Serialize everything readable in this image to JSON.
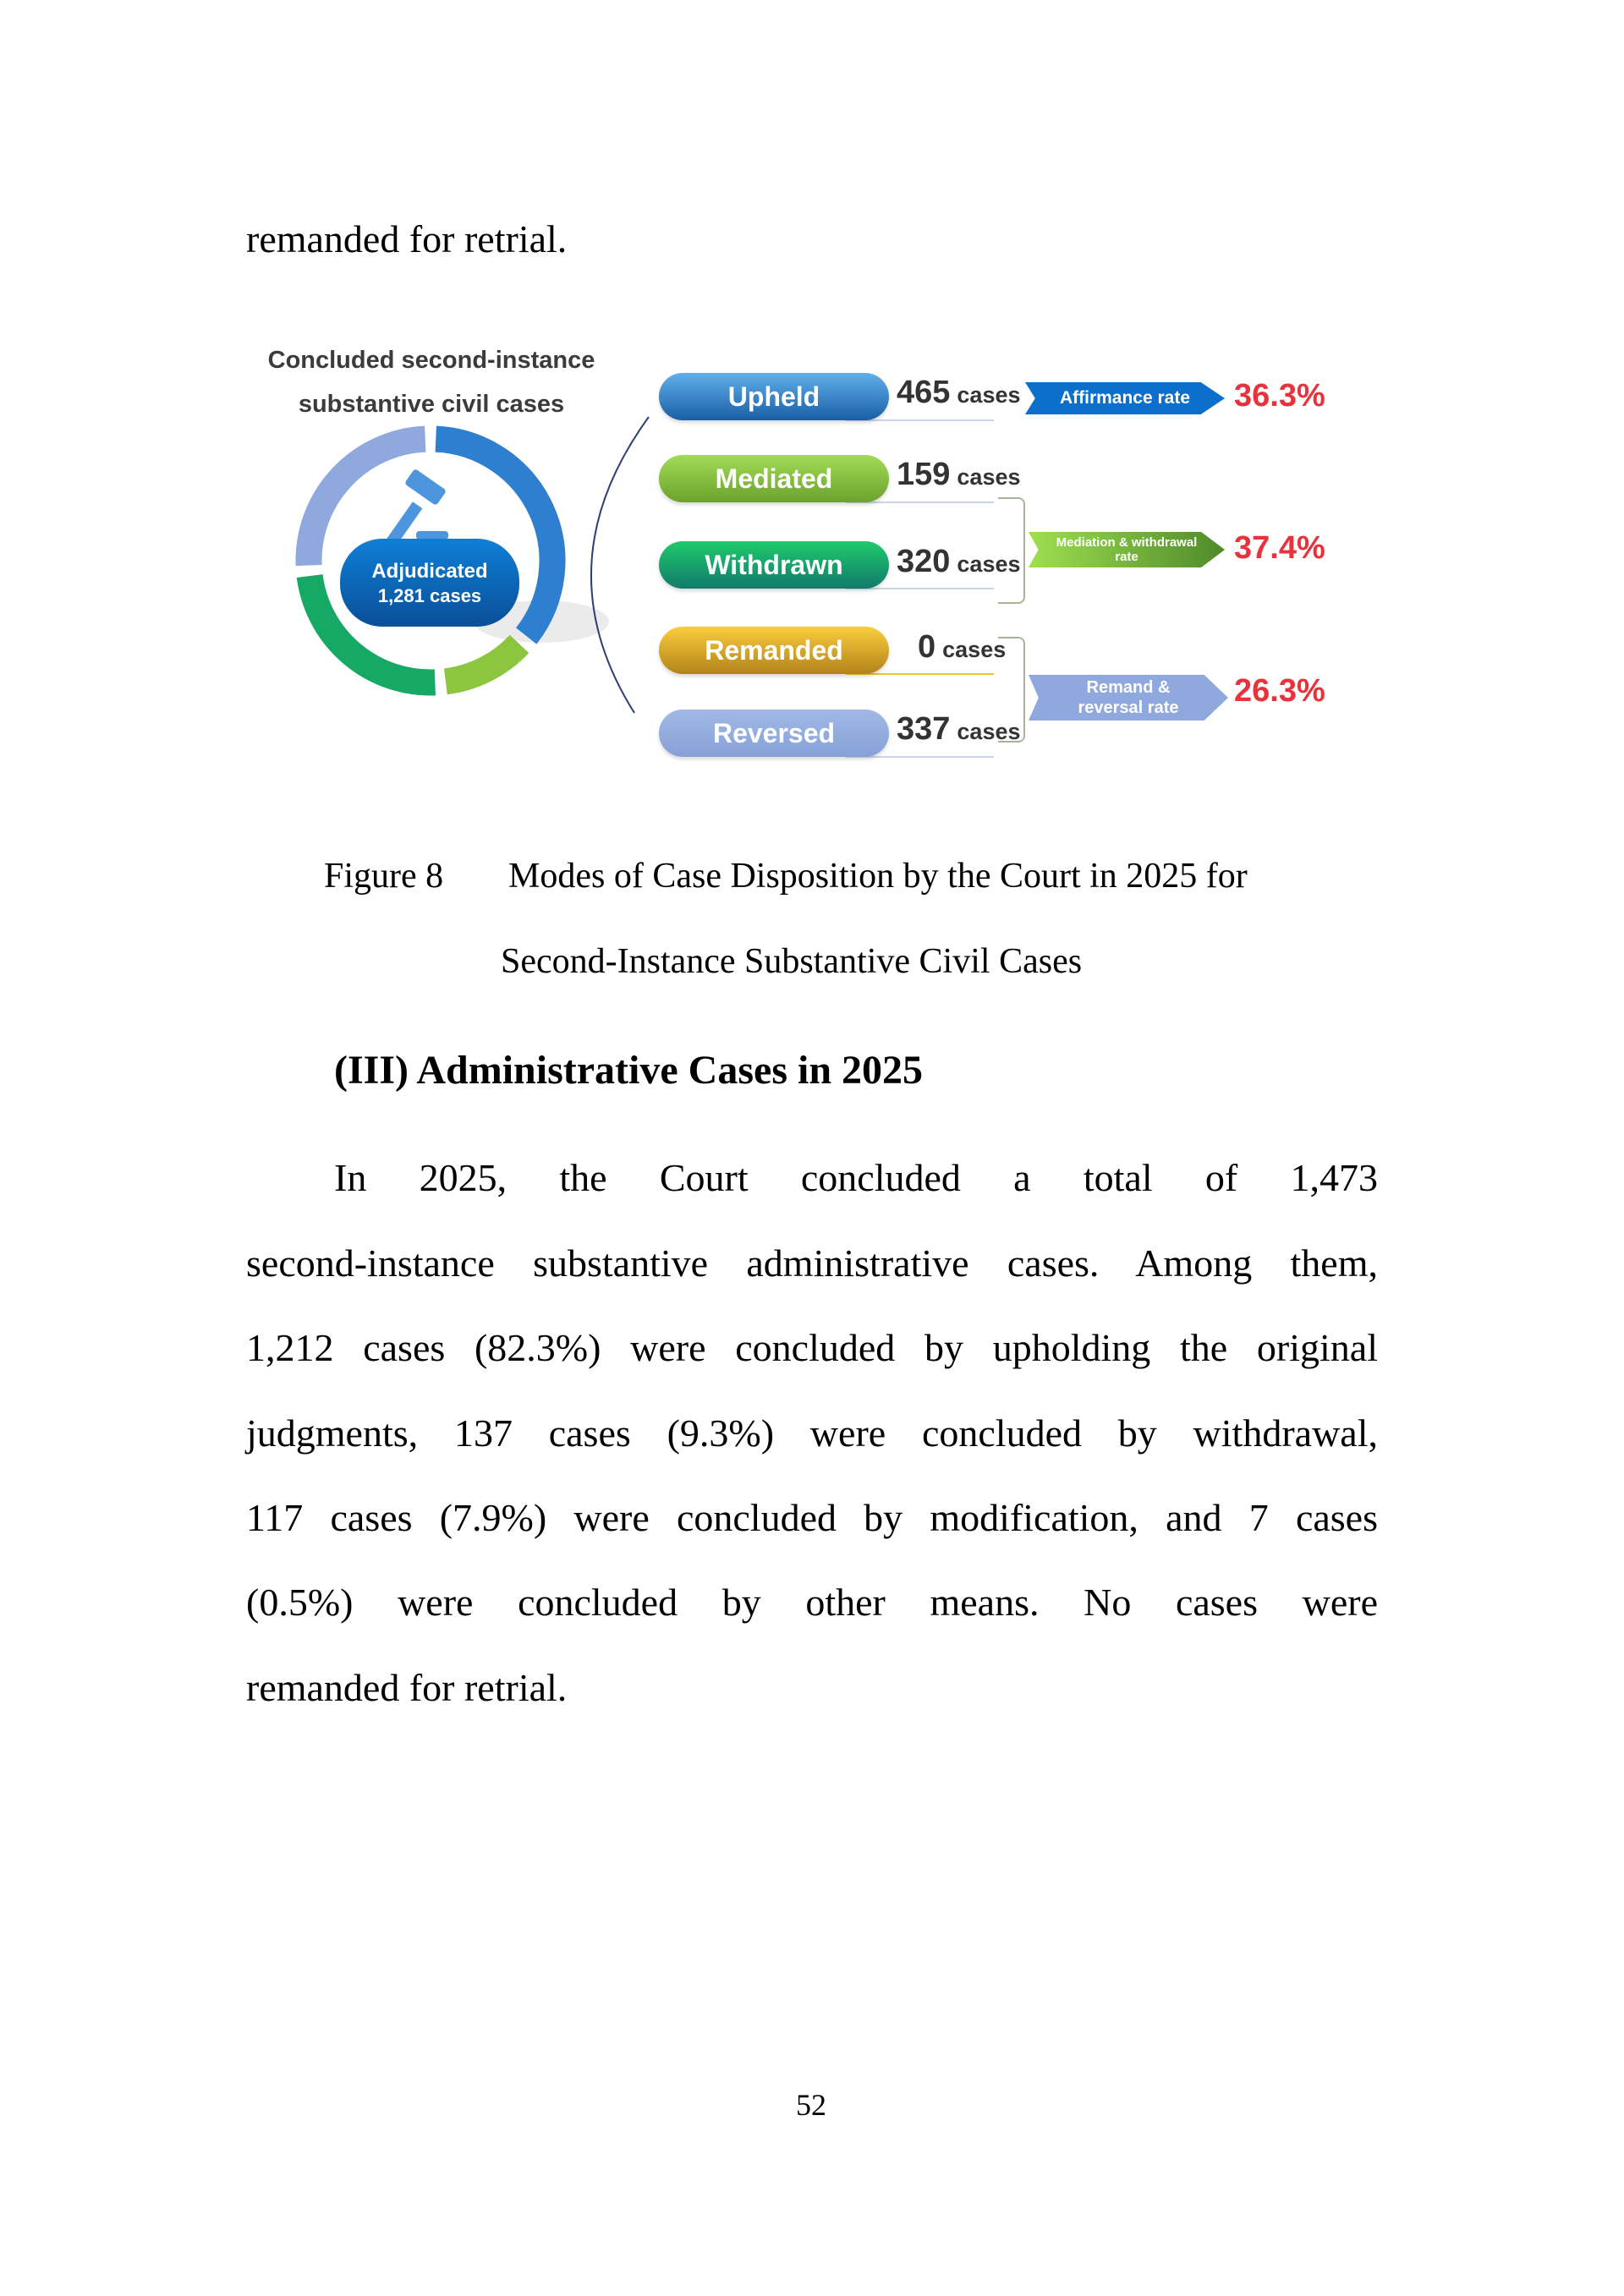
{
  "top_text": "remanded for retrial.",
  "figure": {
    "title_lines": [
      "Concluded second-instance",
      "substantive civil cases"
    ],
    "center_label": [
      "Adjudicated",
      "1,281 cases"
    ],
    "center_icon": "gavel-icon",
    "unit": "cases",
    "rows": [
      {
        "label": "Upheld",
        "count": "465",
        "value": 465,
        "color": "#2f7fd0"
      },
      {
        "label": "Mediated",
        "count": "159",
        "value": 159,
        "color": "#8cc63f"
      },
      {
        "label": "Withdrawn",
        "count": "320",
        "value": 320,
        "color": "#16a865"
      },
      {
        "label": "Remanded",
        "count": "0",
        "value": 0,
        "color": "#e8b62a"
      },
      {
        "label": "Reversed",
        "count": "337",
        "value": 337,
        "color": "#8fa9df"
      }
    ],
    "rates": [
      {
        "label": "Affirmance rate",
        "value": "36.3%"
      },
      {
        "label": "Mediation & withdrawal rate",
        "value": "37.4%"
      },
      {
        "label": "Remand & reversal rate",
        "value": "26.3%"
      }
    ]
  },
  "caption": {
    "figure_no": "Figure 8",
    "line1": "Modes of Case Disposition by the Court in 2025 for",
    "line2": "Second-Instance Substantive Civil Cases"
  },
  "heading": "(III) Administrative Cases in 2025",
  "paragraph_lines": [
    "In 2025, the Court concluded a total of 1,473",
    "second-instance substantive administrative cases. Among them,",
    "1,212 cases (82.3%) were concluded by upholding the original",
    "judgments, 137 cases (9.3%) were concluded by withdrawal,",
    "117 cases (7.9%) were concluded by modification, and 7 cases",
    "(0.5%) were concluded by other means. No cases were",
    "remanded for retrial."
  ],
  "page_number": "52"
}
